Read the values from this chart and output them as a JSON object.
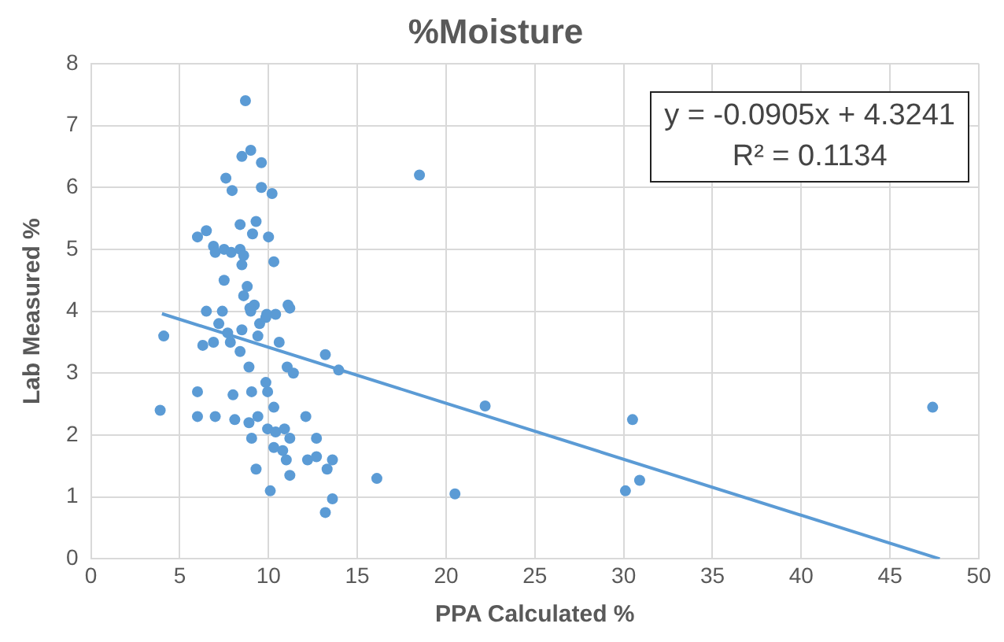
{
  "chart_data": {
    "type": "scatter",
    "title": "%Moisture",
    "xlabel": "PPA Calculated %",
    "ylabel": "Lab Measured %",
    "xlim": [
      0,
      50
    ],
    "xticks": [
      0,
      5,
      10,
      15,
      20,
      25,
      30,
      35,
      40,
      45,
      50
    ],
    "ylim": [
      0,
      8
    ],
    "yticks": [
      0,
      1,
      2,
      3,
      4,
      5,
      6,
      7,
      8
    ],
    "grid": true,
    "legend": false,
    "annotations": [
      "y = -0.0905x + 4.3241",
      "R² = 0.1134"
    ],
    "series": [
      {
        "type": "scatter",
        "marker": "circle",
        "color": "#5b9bd5",
        "x": [
          8.7,
          9.0,
          8.5,
          9.6,
          7.6,
          7.95,
          9.6,
          10.2,
          8.4,
          9.3,
          9.1,
          10.0,
          6.0,
          6.5,
          6.9,
          7.5,
          7.9,
          8.4,
          8.6,
          7.0,
          8.5,
          10.3,
          7.5,
          8.8,
          8.6,
          9.2,
          11.1,
          7.4,
          8.95,
          10.4,
          9.9,
          6.5,
          4.1,
          3.9,
          6.3,
          6.9,
          7.2,
          7.7,
          7.85,
          8.4,
          8.5,
          9.0,
          9.5,
          9.4,
          9.85,
          10.6,
          11.2,
          8.9,
          9.85,
          9.95,
          11.05,
          11.4,
          13.2,
          13.95,
          6.0,
          8.0,
          9.05,
          6.0,
          7.0,
          8.1,
          8.9,
          9.4,
          10.3,
          9.95,
          9.05,
          10.4,
          10.9,
          11.2,
          10.3,
          10.8,
          11.0,
          12.1,
          12.7,
          12.2,
          12.7,
          13.6,
          13.3,
          9.3,
          11.2,
          10.1,
          13.6,
          13.2,
          16.1,
          18.5,
          22.2,
          20.5,
          30.5,
          30.1,
          30.9,
          47.4
        ],
        "values": [
          7.4,
          6.6,
          6.5,
          6.4,
          6.15,
          5.95,
          6.0,
          5.9,
          5.4,
          5.45,
          5.25,
          5.2,
          5.2,
          5.3,
          5.05,
          5.0,
          4.95,
          5.0,
          4.9,
          4.95,
          4.75,
          4.8,
          4.5,
          4.4,
          4.25,
          4.1,
          4.1,
          4.0,
          4.05,
          3.95,
          3.95,
          4.0,
          3.6,
          2.4,
          3.45,
          3.5,
          3.8,
          3.65,
          3.5,
          3.35,
          3.7,
          4.0,
          3.8,
          3.6,
          3.9,
          3.5,
          4.05,
          3.1,
          2.85,
          2.7,
          3.1,
          3.0,
          3.3,
          3.05,
          2.7,
          2.65,
          2.7,
          2.3,
          2.3,
          2.25,
          2.2,
          2.3,
          2.45,
          2.1,
          1.95,
          2.05,
          2.1,
          1.95,
          1.8,
          1.75,
          1.6,
          2.3,
          1.95,
          1.6,
          1.65,
          1.6,
          1.45,
          1.45,
          1.35,
          1.1,
          0.97,
          0.75,
          1.3,
          6.2,
          2.47,
          1.05,
          2.25,
          1.1,
          1.27,
          2.45
        ]
      },
      {
        "type": "line",
        "color": "#5b9bd5",
        "x": [
          4,
          47.8
        ],
        "values": [
          3.96,
          0
        ]
      }
    ]
  }
}
